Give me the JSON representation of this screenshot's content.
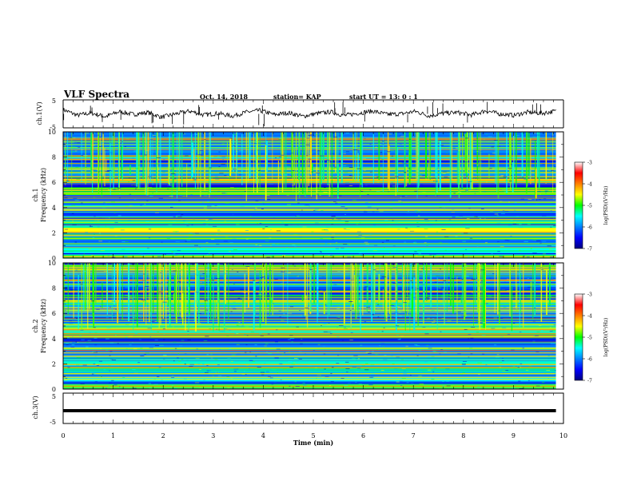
{
  "header": {
    "title": "VLF Spectra",
    "date": "Oct. 14, 2018",
    "station": "station= KAP",
    "start": "start  UT =   13: 0  : 1"
  },
  "chart_data": [
    {
      "type": "line",
      "ylabel": "ch.1(V)",
      "ylim": [
        -5,
        5
      ],
      "yticks": [
        "5",
        "-5"
      ],
      "xlim": [
        0,
        10
      ],
      "color": "#000000",
      "y_approx": [
        1.5,
        -0.5,
        0.3,
        -1.0,
        0.8,
        -0.2,
        0.5,
        -1.2,
        0.0,
        1.0,
        -0.4,
        0.2,
        -0.8,
        0.6,
        1.2,
        -0.3,
        0.4,
        -0.9,
        0.1,
        0.7,
        -0.6,
        0.3,
        1.0,
        -0.2,
        0.0,
        0.9,
        -0.7,
        0.2,
        0.5,
        -0.4,
        1.1,
        0.0,
        -0.5,
        0.6,
        0.2,
        1.0
      ]
    },
    {
      "type": "heatmap",
      "ylabel": "ch.1",
      "ylabel2": "Frequency (kHz)",
      "ylim": [
        0,
        10
      ],
      "yticks": [
        "0",
        "2",
        "4",
        "6",
        "8",
        "10"
      ],
      "xlim": [
        0,
        10
      ],
      "colorbar": {
        "label": "log(PSD)(V²/Hz)",
        "range": [
          -7,
          -3
        ],
        "ticks": [
          "-3",
          "-4",
          "-5",
          "-6",
          "-7"
        ]
      },
      "band_levels_approx": [
        {
          "f": [
            0.0,
            0.3
          ],
          "level": -5.2
        },
        {
          "f": [
            0.3,
            1.0
          ],
          "level": -5.5
        },
        {
          "f": [
            1.0,
            2.0
          ],
          "level": -6.0
        },
        {
          "f": [
            2.0,
            2.4
          ],
          "level": -4.5
        },
        {
          "f": [
            2.4,
            3.0
          ],
          "level": -5.3
        },
        {
          "f": [
            3.0,
            3.6
          ],
          "level": -6.3
        },
        {
          "f": [
            3.6,
            4.2
          ],
          "level": -5.4
        },
        {
          "f": [
            4.2,
            5.0
          ],
          "level": -6.1
        },
        {
          "f": [
            5.0,
            5.6
          ],
          "level": -5.0
        },
        {
          "f": [
            5.6,
            6.4
          ],
          "level": -6.6
        },
        {
          "f": [
            6.4,
            7.0
          ],
          "level": -6.0
        },
        {
          "f": [
            7.0,
            10.0
          ],
          "level": -6.1
        }
      ]
    },
    {
      "type": "heatmap",
      "ylabel": "ch.2",
      "ylabel2": "Frequency (kHz)",
      "ylim": [
        0,
        10
      ],
      "yticks": [
        "0",
        "2",
        "4",
        "6",
        "8",
        "10"
      ],
      "xlim": [
        0,
        10
      ],
      "colorbar": {
        "label": "log(PSD)(V²/Hz)",
        "range": [
          -7,
          -3
        ],
        "ticks": [
          "-3",
          "-4",
          "-5",
          "-6",
          "-7"
        ]
      },
      "band_levels_approx": [
        {
          "f": [
            0.0,
            0.5
          ],
          "level": -5.3
        },
        {
          "f": [
            0.5,
            1.5
          ],
          "level": -5.6
        },
        {
          "f": [
            1.5,
            2.5
          ],
          "level": -5.4
        },
        {
          "f": [
            2.5,
            3.5
          ],
          "level": -6.0
        },
        {
          "f": [
            3.5,
            4.3
          ],
          "level": -6.6
        },
        {
          "f": [
            4.3,
            5.0
          ],
          "level": -5.4
        },
        {
          "f": [
            5.0,
            6.0
          ],
          "level": -6.2
        },
        {
          "f": [
            6.0,
            7.0
          ],
          "level": -5.7
        },
        {
          "f": [
            7.0,
            8.0
          ],
          "level": -6.3
        },
        {
          "f": [
            8.0,
            10.0
          ],
          "level": -5.8
        }
      ]
    },
    {
      "type": "line",
      "ylabel": "ch.3(V)",
      "ylim": [
        -5,
        5
      ],
      "yticks": [
        "5",
        "-5"
      ],
      "xlim": [
        0,
        9.85
      ],
      "y_constant": -0.8,
      "xlabel": "Time (min)",
      "xticks": [
        "0",
        "1",
        "2",
        "3",
        "4",
        "5",
        "6",
        "7",
        "8",
        "9",
        "10"
      ]
    }
  ]
}
